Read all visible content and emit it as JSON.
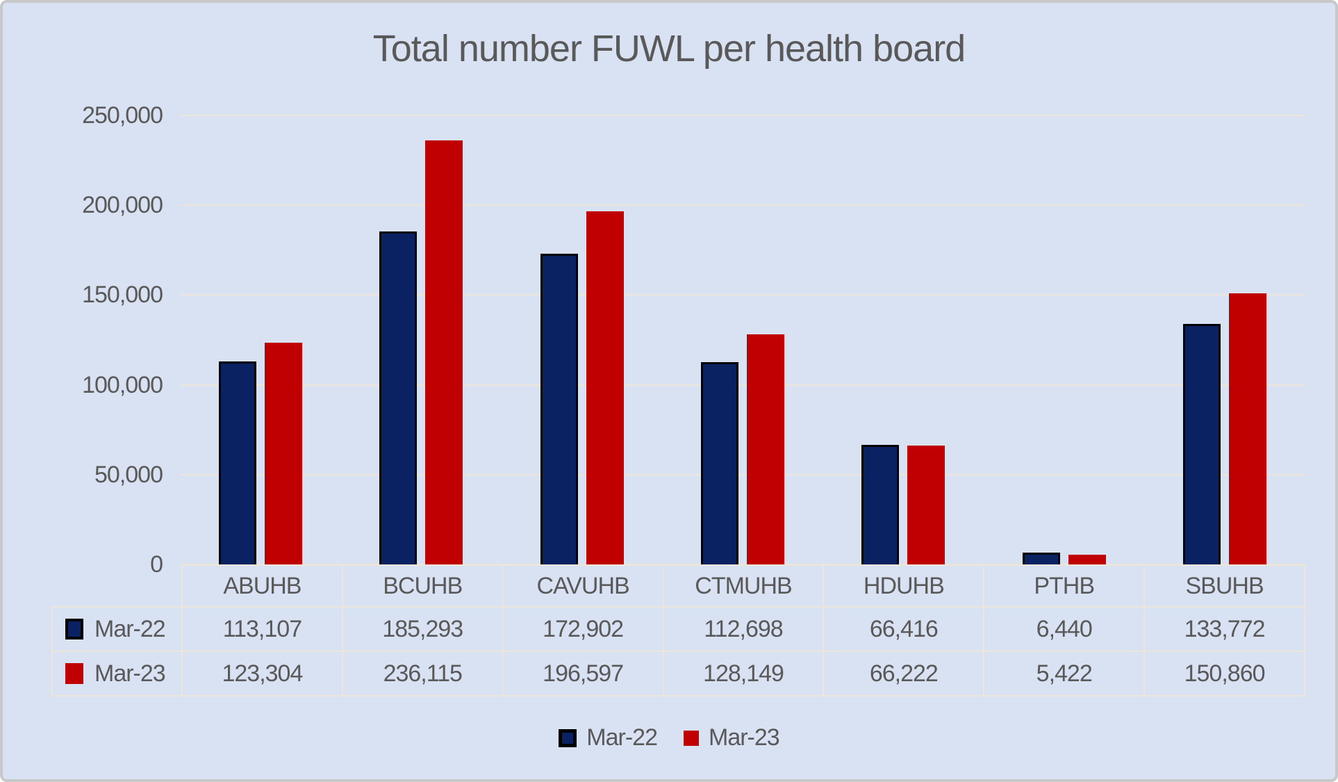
{
  "chart_data": {
    "type": "bar",
    "title": "Total number FUWL per health board",
    "categories": [
      "ABUHB",
      "BCUHB",
      "CAVUHB",
      "CTMUHB",
      "HDUHB",
      "PTHB",
      "SBUHB"
    ],
    "series": [
      {
        "name": "Mar-22",
        "color": "#0a2162",
        "border_color": "#000000",
        "values": [
          113107,
          185293,
          172902,
          112698,
          66416,
          6440,
          133772
        ]
      },
      {
        "name": "Mar-23",
        "color": "#c00000",
        "border_color": null,
        "values": [
          123304,
          236115,
          196597,
          128149,
          66222,
          5422,
          150860
        ]
      }
    ],
    "ylim": [
      0,
      250000
    ],
    "ytick_step": 50000,
    "ytick_labels": [
      "250,000",
      "200,000",
      "150,000",
      "100,000",
      "50,000",
      "0"
    ],
    "xlabel": "",
    "ylabel": "",
    "grid": "horizontal",
    "legend_position": "bottom",
    "data_table_shown": true,
    "style": {
      "background": "#d9e2f3",
      "gridline": "#ece6da",
      "text": "#595959",
      "frame_border": "#c8c8c8"
    }
  }
}
